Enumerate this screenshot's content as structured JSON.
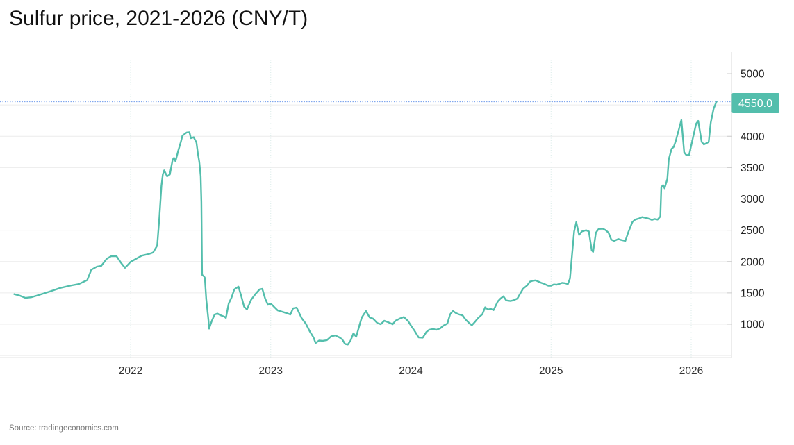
{
  "page": {
    "title": "Sulfur price, 2021-2026 (CNY/T)",
    "source": "Source: tradingeconomics.com"
  },
  "chart_data": {
    "type": "line",
    "title": "Sulfur price, 2021-2026 (CNY/T)",
    "ylabel": "CNY/T",
    "xlabel": "",
    "legend": "none",
    "grid": "on",
    "x_axis": {
      "domain": [
        2021.07,
        2026.29
      ],
      "ticks": [
        "2022",
        "2023",
        "2024",
        "2025",
        "2026"
      ],
      "tick_values": [
        2022,
        2023,
        2024,
        2025,
        2026
      ]
    },
    "y_axis": {
      "side": "right",
      "label_ticks": [
        "5000",
        "4000",
        "3500",
        "3000",
        "2500",
        "2000",
        "1500",
        "1000"
      ],
      "label_tick_values": [
        5000,
        4000,
        3500,
        3000,
        2500,
        2000,
        1500,
        1000
      ],
      "gridline_values": [
        4500,
        4000,
        3500,
        3000,
        2500,
        2000,
        1500,
        1000,
        500
      ],
      "ylim": [
        500,
        5343
      ]
    },
    "current": {
      "value": 4550.0,
      "label": "4550.0",
      "badge_color": "#53beac",
      "dotted_line_color": "#6292ea"
    },
    "colors": {
      "line": "#53beac",
      "h_grid": "#ececec",
      "v_grid": "#d7eae7",
      "axis": "#d9d9d9",
      "tick": "#cccccc"
    },
    "series": [
      {
        "name": "Sulfur price",
        "color": "#53beac",
        "points": [
          [
            2021.17,
            1480
          ],
          [
            2021.21,
            1455
          ],
          [
            2021.25,
            1420
          ],
          [
            2021.29,
            1430
          ],
          [
            2021.33,
            1455
          ],
          [
            2021.42,
            1520
          ],
          [
            2021.5,
            1580
          ],
          [
            2021.58,
            1620
          ],
          [
            2021.63,
            1640
          ],
          [
            2021.69,
            1705
          ],
          [
            2021.72,
            1870
          ],
          [
            2021.76,
            1920
          ],
          [
            2021.79,
            1930
          ],
          [
            2021.83,
            2045
          ],
          [
            2021.86,
            2085
          ],
          [
            2021.9,
            2085
          ],
          [
            2021.93,
            1985
          ],
          [
            2021.96,
            1900
          ],
          [
            2022.0,
            1995
          ],
          [
            2022.04,
            2045
          ],
          [
            2022.08,
            2095
          ],
          [
            2022.13,
            2120
          ],
          [
            2022.16,
            2145
          ],
          [
            2022.19,
            2255
          ],
          [
            2022.205,
            2700
          ],
          [
            2022.22,
            3210
          ],
          [
            2022.23,
            3390
          ],
          [
            2022.24,
            3455
          ],
          [
            2022.26,
            3360
          ],
          [
            2022.28,
            3390
          ],
          [
            2022.3,
            3625
          ],
          [
            2022.31,
            3655
          ],
          [
            2022.32,
            3600
          ],
          [
            2022.34,
            3770
          ],
          [
            2022.36,
            3920
          ],
          [
            2022.37,
            4010
          ],
          [
            2022.4,
            4060
          ],
          [
            2022.42,
            4065
          ],
          [
            2022.43,
            3970
          ],
          [
            2022.45,
            3985
          ],
          [
            2022.47,
            3900
          ],
          [
            2022.48,
            3730
          ],
          [
            2022.49,
            3590
          ],
          [
            2022.5,
            3365
          ],
          [
            2022.505,
            2955
          ],
          [
            2022.51,
            1790
          ],
          [
            2022.525,
            1760
          ],
          [
            2022.53,
            1740
          ],
          [
            2022.54,
            1400
          ],
          [
            2022.555,
            1075
          ],
          [
            2022.56,
            930
          ],
          [
            2022.58,
            1055
          ],
          [
            2022.6,
            1155
          ],
          [
            2022.62,
            1170
          ],
          [
            2022.64,
            1145
          ],
          [
            2022.67,
            1120
          ],
          [
            2022.68,
            1100
          ],
          [
            2022.7,
            1330
          ],
          [
            2022.72,
            1425
          ],
          [
            2022.74,
            1555
          ],
          [
            2022.77,
            1600
          ],
          [
            2022.79,
            1445
          ],
          [
            2022.81,
            1280
          ],
          [
            2022.83,
            1235
          ],
          [
            2022.86,
            1390
          ],
          [
            2022.89,
            1480
          ],
          [
            2022.92,
            1555
          ],
          [
            2022.94,
            1565
          ],
          [
            2022.96,
            1410
          ],
          [
            2022.98,
            1310
          ],
          [
            2023.0,
            1330
          ],
          [
            2023.025,
            1275
          ],
          [
            2023.05,
            1220
          ],
          [
            2023.08,
            1200
          ],
          [
            2023.11,
            1180
          ],
          [
            2023.14,
            1155
          ],
          [
            2023.16,
            1255
          ],
          [
            2023.185,
            1265
          ],
          [
            2023.22,
            1100
          ],
          [
            2023.25,
            1010
          ],
          [
            2023.28,
            880
          ],
          [
            2023.305,
            790
          ],
          [
            2023.32,
            700
          ],
          [
            2023.345,
            740
          ],
          [
            2023.37,
            735
          ],
          [
            2023.4,
            745
          ],
          [
            2023.43,
            805
          ],
          [
            2023.46,
            820
          ],
          [
            2023.49,
            790
          ],
          [
            2023.51,
            760
          ],
          [
            2023.53,
            685
          ],
          [
            2023.55,
            675
          ],
          [
            2023.57,
            740
          ],
          [
            2023.59,
            855
          ],
          [
            2023.61,
            800
          ],
          [
            2023.635,
            1000
          ],
          [
            2023.65,
            1110
          ],
          [
            2023.68,
            1210
          ],
          [
            2023.705,
            1110
          ],
          [
            2023.73,
            1090
          ],
          [
            2023.76,
            1020
          ],
          [
            2023.785,
            1000
          ],
          [
            2023.81,
            1055
          ],
          [
            2023.84,
            1030
          ],
          [
            2023.87,
            1000
          ],
          [
            2023.89,
            1055
          ],
          [
            2023.92,
            1090
          ],
          [
            2023.95,
            1115
          ],
          [
            2023.98,
            1050
          ],
          [
            2024.0,
            980
          ],
          [
            2024.025,
            900
          ],
          [
            2024.055,
            790
          ],
          [
            2024.085,
            785
          ],
          [
            2024.11,
            875
          ],
          [
            2024.13,
            910
          ],
          [
            2024.16,
            925
          ],
          [
            2024.18,
            910
          ],
          [
            2024.21,
            935
          ],
          [
            2024.23,
            975
          ],
          [
            2024.26,
            1010
          ],
          [
            2024.28,
            1160
          ],
          [
            2024.3,
            1210
          ],
          [
            2024.32,
            1180
          ],
          [
            2024.34,
            1160
          ],
          [
            2024.37,
            1140
          ],
          [
            2024.39,
            1075
          ],
          [
            2024.42,
            1010
          ],
          [
            2024.435,
            985
          ],
          [
            2024.46,
            1045
          ],
          [
            2024.48,
            1100
          ],
          [
            2024.51,
            1160
          ],
          [
            2024.53,
            1270
          ],
          [
            2024.55,
            1235
          ],
          [
            2024.57,
            1245
          ],
          [
            2024.59,
            1225
          ],
          [
            2024.62,
            1365
          ],
          [
            2024.64,
            1410
          ],
          [
            2024.66,
            1445
          ],
          [
            2024.68,
            1380
          ],
          [
            2024.71,
            1370
          ],
          [
            2024.73,
            1380
          ],
          [
            2024.76,
            1410
          ],
          [
            2024.78,
            1490
          ],
          [
            2024.8,
            1565
          ],
          [
            2024.83,
            1620
          ],
          [
            2024.85,
            1680
          ],
          [
            2024.87,
            1695
          ],
          [
            2024.89,
            1700
          ],
          [
            2024.91,
            1680
          ],
          [
            2024.93,
            1660
          ],
          [
            2024.95,
            1645
          ],
          [
            2024.98,
            1615
          ],
          [
            2025.0,
            1615
          ],
          [
            2025.02,
            1635
          ],
          [
            2025.04,
            1630
          ],
          [
            2025.06,
            1645
          ],
          [
            2025.08,
            1660
          ],
          [
            2025.1,
            1655
          ],
          [
            2025.12,
            1640
          ],
          [
            2025.135,
            1730
          ],
          [
            2025.15,
            2110
          ],
          [
            2025.165,
            2480
          ],
          [
            2025.18,
            2630
          ],
          [
            2025.2,
            2425
          ],
          [
            2025.22,
            2480
          ],
          [
            2025.25,
            2500
          ],
          [
            2025.27,
            2480
          ],
          [
            2025.29,
            2180
          ],
          [
            2025.3,
            2155
          ],
          [
            2025.32,
            2460
          ],
          [
            2025.34,
            2520
          ],
          [
            2025.37,
            2525
          ],
          [
            2025.39,
            2500
          ],
          [
            2025.41,
            2460
          ],
          [
            2025.43,
            2350
          ],
          [
            2025.45,
            2330
          ],
          [
            2025.48,
            2360
          ],
          [
            2025.5,
            2345
          ],
          [
            2025.53,
            2330
          ],
          [
            2025.55,
            2460
          ],
          [
            2025.58,
            2630
          ],
          [
            2025.6,
            2670
          ],
          [
            2025.63,
            2690
          ],
          [
            2025.65,
            2710
          ],
          [
            2025.69,
            2690
          ],
          [
            2025.72,
            2665
          ],
          [
            2025.74,
            2680
          ],
          [
            2025.76,
            2670
          ],
          [
            2025.78,
            2720
          ],
          [
            2025.787,
            3190
          ],
          [
            2025.8,
            3220
          ],
          [
            2025.81,
            3170
          ],
          [
            2025.83,
            3320
          ],
          [
            2025.84,
            3630
          ],
          [
            2025.86,
            3800
          ],
          [
            2025.875,
            3830
          ],
          [
            2025.89,
            3925
          ],
          [
            2025.93,
            4260
          ],
          [
            2025.95,
            3745
          ],
          [
            2025.965,
            3700
          ],
          [
            2025.985,
            3700
          ],
          [
            2026.01,
            3950
          ],
          [
            2026.035,
            4200
          ],
          [
            2026.05,
            4245
          ],
          [
            2026.075,
            3910
          ],
          [
            2026.09,
            3870
          ],
          [
            2026.11,
            3890
          ],
          [
            2026.125,
            3910
          ],
          [
            2026.14,
            4220
          ],
          [
            2026.16,
            4440
          ],
          [
            2026.18,
            4550
          ]
        ]
      }
    ]
  }
}
